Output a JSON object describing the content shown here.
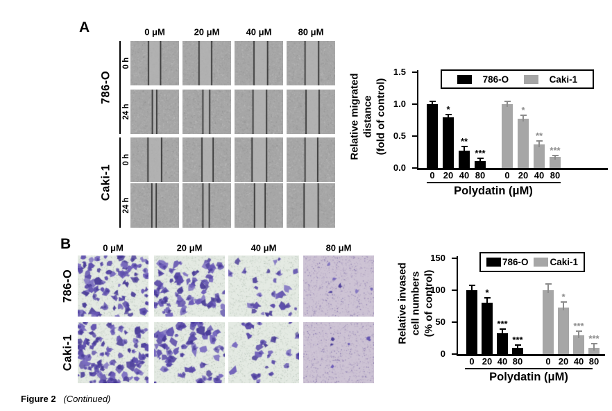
{
  "figure_caption": {
    "bold": "Figure 2",
    "italic": "(Continued)"
  },
  "panelA": {
    "label": "A",
    "col_headers": [
      "0 μM",
      "20 μM",
      "40 μM",
      "80 μM"
    ],
    "groups": [
      {
        "cell_line": "786-O",
        "rows": [
          {
            "time": "0 h",
            "wound_gaps": [
              [
                0.37,
                0.62
              ],
              [
                0.34,
                0.6
              ],
              [
                0.4,
                0.68
              ],
              [
                0.38,
                0.66
              ]
            ]
          },
          {
            "time": "24 h",
            "wound_gaps": [
              [
                0.45,
                0.54
              ],
              [
                0.42,
                0.56
              ],
              [
                0.38,
                0.66
              ],
              [
                0.4,
                0.67
              ]
            ]
          }
        ]
      },
      {
        "cell_line": "Caki-1",
        "rows": [
          {
            "time": "0 h",
            "wound_gaps": [
              [
                0.36,
                0.64
              ],
              [
                0.4,
                0.63
              ],
              [
                0.36,
                0.66
              ],
              [
                0.38,
                0.64
              ]
            ]
          },
          {
            "time": "24 h",
            "wound_gaps": [
              [
                0.44,
                0.53
              ],
              [
                0.42,
                0.55
              ],
              [
                0.41,
                0.63
              ],
              [
                0.36,
                0.65
              ]
            ]
          }
        ]
      }
    ]
  },
  "panelB": {
    "label": "B",
    "col_headers": [
      "0 μM",
      "20 μM",
      "40 μM",
      "80 μM"
    ],
    "rows": [
      {
        "cell_line": "786-O",
        "cell_counts": [
          95,
          78,
          30,
          6
        ]
      },
      {
        "cell_line": "Caki-1",
        "cell_counts": [
          108,
          70,
          26,
          5
        ]
      }
    ],
    "stain_colors": {
      "background": "#e4eae3",
      "background_80um": "#cdc3d4",
      "cell": "#5a4aa8"
    }
  },
  "chart_data": [
    {
      "type": "bar",
      "title": "",
      "categories": [
        "0",
        "20",
        "40",
        "80"
      ],
      "series": [
        {
          "name": "786-O",
          "color": "#000000",
          "annotation_color": "#000000",
          "values": [
            1.0,
            0.79,
            0.27,
            0.11
          ],
          "errors": [
            0.04,
            0.05,
            0.07,
            0.04
          ],
          "sig": [
            "",
            "*",
            "**",
            "***"
          ]
        },
        {
          "name": "Caki-1",
          "color": "#a6a6a6",
          "annotation_color": "#8c8c8c",
          "values": [
            1.0,
            0.77,
            0.37,
            0.17
          ],
          "errors": [
            0.04,
            0.06,
            0.05,
            0.03
          ],
          "sig": [
            "",
            "*",
            "**",
            "***"
          ]
        }
      ],
      "xlabel": "Polydatin (μM)",
      "ylabel_lines": [
        "Relative migrated",
        "distance",
        "(fold of control)"
      ],
      "yticks": [
        0,
        0.5,
        1.0,
        1.5
      ],
      "ytick_labels": [
        "0.0",
        "0.5",
        "1.0",
        "1.5"
      ],
      "ylim": [
        0,
        1.5
      ],
      "legend_position": "top",
      "grid": false
    },
    {
      "type": "bar",
      "title": "",
      "categories": [
        "0",
        "20",
        "40",
        "80"
      ],
      "series": [
        {
          "name": "786-O",
          "color": "#000000",
          "annotation_color": "#000000",
          "values": [
            100,
            80,
            33,
            10
          ],
          "errors": [
            8,
            8,
            6,
            4
          ],
          "sig": [
            "",
            "*",
            "***",
            "***"
          ]
        },
        {
          "name": "Caki-1",
          "color": "#a6a6a6",
          "annotation_color": "#8c8c8c",
          "values": [
            100,
            73,
            29,
            10
          ],
          "errors": [
            10,
            8,
            7,
            6
          ],
          "sig": [
            "",
            "*",
            "***",
            "***"
          ]
        }
      ],
      "xlabel": "Polydatin (μM)",
      "ylabel_lines": [
        "Relative invased",
        "cell numbers",
        "(% of control)"
      ],
      "yticks": [
        0,
        50,
        100,
        150
      ],
      "ytick_labels": [
        "0",
        "50",
        "100",
        "150"
      ],
      "ylim": [
        0,
        150
      ],
      "legend_position": "top",
      "grid": false
    }
  ]
}
